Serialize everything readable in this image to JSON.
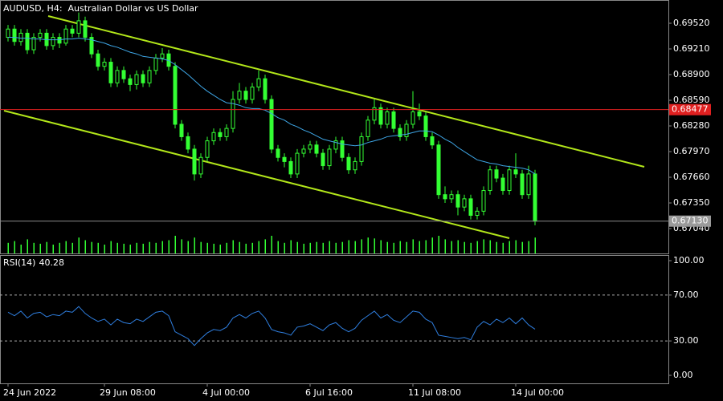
{
  "chart_data": [
    {
      "type": "candlestick",
      "title": "AUDUSD, H4:  Australian Dollar vs US Dollar",
      "categories": [
        "24 Jun 2022",
        null,
        null,
        null,
        null,
        null,
        null,
        null,
        null,
        null,
        null,
        null,
        null,
        null,
        null,
        "29 Jun 08:00",
        null,
        null,
        null,
        null,
        null,
        null,
        null,
        null,
        null,
        null,
        null,
        null,
        null,
        null,
        null,
        "4 Jul 00:00",
        null,
        null,
        null,
        null,
        null,
        null,
        null,
        null,
        null,
        null,
        null,
        null,
        null,
        null,
        null,
        "6 Jul 16:00",
        null,
        null,
        null,
        null,
        null,
        null,
        null,
        null,
        null,
        null,
        null,
        null,
        null,
        null,
        null,
        "11 Jul 08:00",
        null,
        null,
        null,
        null,
        null,
        null,
        null,
        null,
        null,
        null,
        null,
        null,
        null,
        null,
        null,
        "14 Jul 00:00",
        null,
        null,
        null
      ],
      "open": [
        0.6935,
        0.6945,
        0.693,
        0.694,
        0.692,
        0.6935,
        0.694,
        0.6925,
        0.6935,
        0.6928,
        0.6945,
        0.694,
        0.6955,
        0.6935,
        0.6915,
        0.69,
        0.6905,
        0.688,
        0.6895,
        0.6885,
        0.6878,
        0.689,
        0.688,
        0.6895,
        0.691,
        0.6915,
        0.69,
        0.683,
        0.6815,
        0.68,
        0.677,
        0.679,
        0.681,
        0.682,
        0.6815,
        0.6825,
        0.686,
        0.687,
        0.686,
        0.6875,
        0.6885,
        0.686,
        0.68,
        0.679,
        0.6785,
        0.677,
        0.6795,
        0.68,
        0.6805,
        0.6795,
        0.678,
        0.68,
        0.681,
        0.679,
        0.6775,
        0.6785,
        0.6815,
        0.6835,
        0.685,
        0.683,
        0.6845,
        0.6825,
        0.6815,
        0.683,
        0.6845,
        0.684,
        0.6815,
        0.6805,
        0.6745,
        0.674,
        0.6745,
        0.673,
        0.674,
        0.672,
        0.6725,
        0.675,
        0.6775,
        0.6765,
        0.675,
        0.6775,
        0.677,
        0.6745,
        0.677
      ],
      "high": [
        0.695,
        0.695,
        0.6945,
        0.6945,
        0.694,
        0.6945,
        0.6945,
        0.694,
        0.694,
        0.695,
        0.695,
        0.6965,
        0.696,
        0.694,
        0.692,
        0.691,
        0.691,
        0.69,
        0.69,
        0.689,
        0.6895,
        0.6895,
        0.69,
        0.6915,
        0.6922,
        0.692,
        0.6905,
        0.6835,
        0.682,
        0.6805,
        0.6795,
        0.6815,
        0.6825,
        0.6825,
        0.683,
        0.687,
        0.688,
        0.6875,
        0.688,
        0.6895,
        0.689,
        0.6865,
        0.6805,
        0.6795,
        0.679,
        0.68,
        0.6805,
        0.681,
        0.681,
        0.68,
        0.6805,
        0.6815,
        0.6815,
        0.6795,
        0.679,
        0.682,
        0.684,
        0.686,
        0.6855,
        0.685,
        0.685,
        0.683,
        0.6835,
        0.687,
        0.6855,
        0.6845,
        0.682,
        0.681,
        0.6755,
        0.675,
        0.675,
        0.6745,
        0.6745,
        0.673,
        0.6755,
        0.678,
        0.678,
        0.677,
        0.678,
        0.6795,
        0.6775,
        0.678,
        0.6775
      ],
      "low": [
        0.693,
        0.6925,
        0.6925,
        0.6915,
        0.6915,
        0.693,
        0.692,
        0.692,
        0.6922,
        0.6925,
        0.6935,
        0.6935,
        0.693,
        0.691,
        0.6895,
        0.6895,
        0.6875,
        0.6875,
        0.688,
        0.687,
        0.6872,
        0.6875,
        0.6875,
        0.689,
        0.6905,
        0.6895,
        0.6825,
        0.681,
        0.6795,
        0.6762,
        0.6765,
        0.6785,
        0.6805,
        0.681,
        0.681,
        0.682,
        0.6855,
        0.6855,
        0.6855,
        0.687,
        0.6855,
        0.6795,
        0.6785,
        0.6778,
        0.6765,
        0.6765,
        0.679,
        0.6795,
        0.679,
        0.6775,
        0.6775,
        0.6795,
        0.6785,
        0.677,
        0.677,
        0.678,
        0.681,
        0.683,
        0.6825,
        0.6825,
        0.682,
        0.681,
        0.681,
        0.6825,
        0.6835,
        0.681,
        0.68,
        0.674,
        0.6735,
        0.6735,
        0.672,
        0.6725,
        0.6715,
        0.6715,
        0.672,
        0.6745,
        0.676,
        0.6745,
        0.6745,
        0.6765,
        0.674,
        0.674,
        0.6708
      ],
      "close": [
        0.6945,
        0.693,
        0.694,
        0.692,
        0.6935,
        0.694,
        0.6925,
        0.6935,
        0.6928,
        0.6945,
        0.694,
        0.6955,
        0.6935,
        0.6915,
        0.69,
        0.6905,
        0.688,
        0.6895,
        0.6885,
        0.6878,
        0.689,
        0.688,
        0.6895,
        0.691,
        0.6915,
        0.69,
        0.683,
        0.6815,
        0.68,
        0.677,
        0.679,
        0.681,
        0.682,
        0.6815,
        0.6825,
        0.686,
        0.687,
        0.686,
        0.6875,
        0.6885,
        0.686,
        0.68,
        0.679,
        0.6785,
        0.677,
        0.6795,
        0.68,
        0.6805,
        0.6795,
        0.678,
        0.68,
        0.681,
        0.679,
        0.6775,
        0.6785,
        0.6815,
        0.6835,
        0.685,
        0.683,
        0.6845,
        0.6825,
        0.6815,
        0.683,
        0.6845,
        0.684,
        0.6815,
        0.6805,
        0.6745,
        0.674,
        0.6745,
        0.673,
        0.674,
        0.672,
        0.6725,
        0.675,
        0.6775,
        0.6765,
        0.675,
        0.6775,
        0.677,
        0.6745,
        0.677,
        0.6713
      ],
      "ma": {
        "color": "#3ea6e6",
        "values": [
          0.6935,
          0.6935,
          0.6934,
          0.6934,
          0.6933,
          0.6933,
          0.6932,
          0.6932,
          0.6932,
          0.6933,
          0.6933,
          0.6934,
          0.6933,
          0.6932,
          0.693,
          0.6928,
          0.6925,
          0.6923,
          0.692,
          0.6917,
          0.6915,
          0.6912,
          0.6911,
          0.691,
          0.6909,
          0.6907,
          0.6902,
          0.6896,
          0.689,
          0.6883,
          0.6876,
          0.687,
          0.6865,
          0.686,
          0.6856,
          0.6855,
          0.6853,
          0.685,
          0.6849,
          0.6849,
          0.6847,
          0.6843,
          0.6838,
          0.6835,
          0.683,
          0.6827,
          0.6823,
          0.682,
          0.6816,
          0.6812,
          0.681,
          0.6808,
          0.6806,
          0.6805,
          0.6804,
          0.6805,
          0.6808,
          0.681,
          0.6812,
          0.6815,
          0.6816,
          0.6817,
          0.6818,
          0.682,
          0.6822,
          0.6822,
          0.6821,
          0.6817,
          0.6812,
          0.6808,
          0.6802,
          0.6797,
          0.6792,
          0.6787,
          0.6785,
          0.6783,
          0.6782,
          0.678,
          0.6779,
          0.6778,
          0.6777,
          0.6775,
          0.677
        ]
      },
      "volume": [
        12,
        14,
        10,
        16,
        12,
        11,
        13,
        10,
        12,
        14,
        12,
        18,
        15,
        13,
        12,
        10,
        14,
        12,
        11,
        10,
        12,
        11,
        13,
        12,
        14,
        15,
        20,
        16,
        14,
        18,
        13,
        12,
        11,
        10,
        12,
        15,
        13,
        11,
        12,
        14,
        16,
        20,
        14,
        12,
        15,
        13,
        11,
        12,
        13,
        12,
        14,
        12,
        13,
        15,
        14,
        16,
        18,
        17,
        15,
        13,
        12,
        14,
        13,
        16,
        14,
        15,
        18,
        20,
        16,
        14,
        15,
        13,
        12,
        14,
        16,
        15,
        13,
        12,
        14,
        15,
        13,
        14,
        18
      ],
      "color": "#33ff33",
      "ylim": [
        0.6674,
        0.69801
      ],
      "yticks": [
        {
          "value": 0.6952,
          "label": "0.69520"
        },
        {
          "value": 0.6921,
          "label": "0.69210"
        },
        {
          "value": 0.689,
          "label": "0.68900"
        },
        {
          "value": 0.6859,
          "label": "0.68590"
        },
        {
          "value": 0.6828,
          "label": "0.68280"
        },
        {
          "value": 0.6797,
          "label": "0.67970"
        },
        {
          "value": 0.6766,
          "label": "0.67660"
        },
        {
          "value": 0.6735,
          "label": "0.67350"
        },
        {
          "value": 0.6704,
          "label": "0.67040"
        }
      ],
      "hline": {
        "value": 0.68477,
        "color": "#e02020"
      },
      "current_price": {
        "value": 0.6713,
        "label": "0.67130"
      }
    },
    {
      "type": "line",
      "name": "RSI(14)",
      "color": "#2f7fe0",
      "values": [
        55,
        52,
        56,
        50,
        54,
        55,
        51,
        53,
        52,
        56,
        55,
        60,
        54,
        50,
        47,
        49,
        44,
        49,
        46,
        45,
        49,
        47,
        51,
        55,
        56,
        52,
        38,
        35,
        32,
        26,
        32,
        37,
        40,
        39,
        42,
        50,
        53,
        50,
        54,
        56,
        50,
        40,
        38,
        37,
        35,
        42,
        43,
        45,
        42,
        39,
        44,
        46,
        41,
        38,
        41,
        48,
        52,
        56,
        50,
        53,
        48,
        46,
        51,
        56,
        55,
        49,
        46,
        35,
        34,
        33,
        32,
        33,
        31,
        42,
        47,
        44,
        49,
        46,
        50,
        45,
        50,
        44,
        40.28
      ],
      "ylim": [
        -7,
        104.9
      ],
      "yticks": [
        {
          "value": 100,
          "label": "100.00"
        },
        {
          "value": 70,
          "label": "70.00"
        },
        {
          "value": 30,
          "label": "30.00"
        },
        {
          "value": 0,
          "label": "0.00"
        }
      ],
      "levels": [
        70,
        30
      ]
    }
  ]
}
